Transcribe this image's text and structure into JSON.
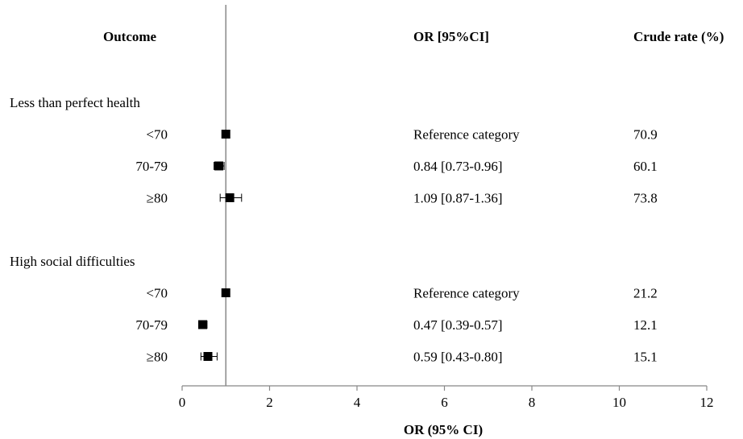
{
  "chart_data": {
    "type": "forest",
    "headers": {
      "outcome": "Outcome",
      "or": "OR [95%CI]",
      "rate": "Crude rate (%)"
    },
    "xlabel": "OR (95% CI)",
    "xlim": [
      0,
      12
    ],
    "xticks": [
      0,
      2,
      4,
      6,
      8,
      10,
      12
    ],
    "reference_line": 1,
    "groups": [
      {
        "name": "Less than perfect health",
        "rows": [
          {
            "category": "<70",
            "or": 1.0,
            "lo": null,
            "hi": null,
            "or_text": "Reference category",
            "rate": "70.9"
          },
          {
            "category": "70-79",
            "or": 0.84,
            "lo": 0.73,
            "hi": 0.96,
            "or_text": "0.84 [0.73-0.96]",
            "rate": "60.1"
          },
          {
            "category": "≥80",
            "or": 1.09,
            "lo": 0.87,
            "hi": 1.36,
            "or_text": "1.09 [0.87-1.36]",
            "rate": "73.8"
          }
        ]
      },
      {
        "name": "High social difficulties",
        "rows": [
          {
            "category": "<70",
            "or": 1.0,
            "lo": null,
            "hi": null,
            "or_text": "Reference category",
            "rate": "21.2"
          },
          {
            "category": "70-79",
            "or": 0.47,
            "lo": 0.39,
            "hi": 0.57,
            "or_text": "0.47 [0.39-0.57]",
            "rate": "12.1"
          },
          {
            "category": "≥80",
            "or": 0.59,
            "lo": 0.43,
            "hi": 0.8,
            "or_text": "0.59 [0.43-0.80]",
            "rate": "15.1"
          }
        ]
      }
    ],
    "colors": {
      "marker": "#000000",
      "axis": "#888888",
      "refline": "#888888"
    },
    "grid": false,
    "legend": "none"
  }
}
